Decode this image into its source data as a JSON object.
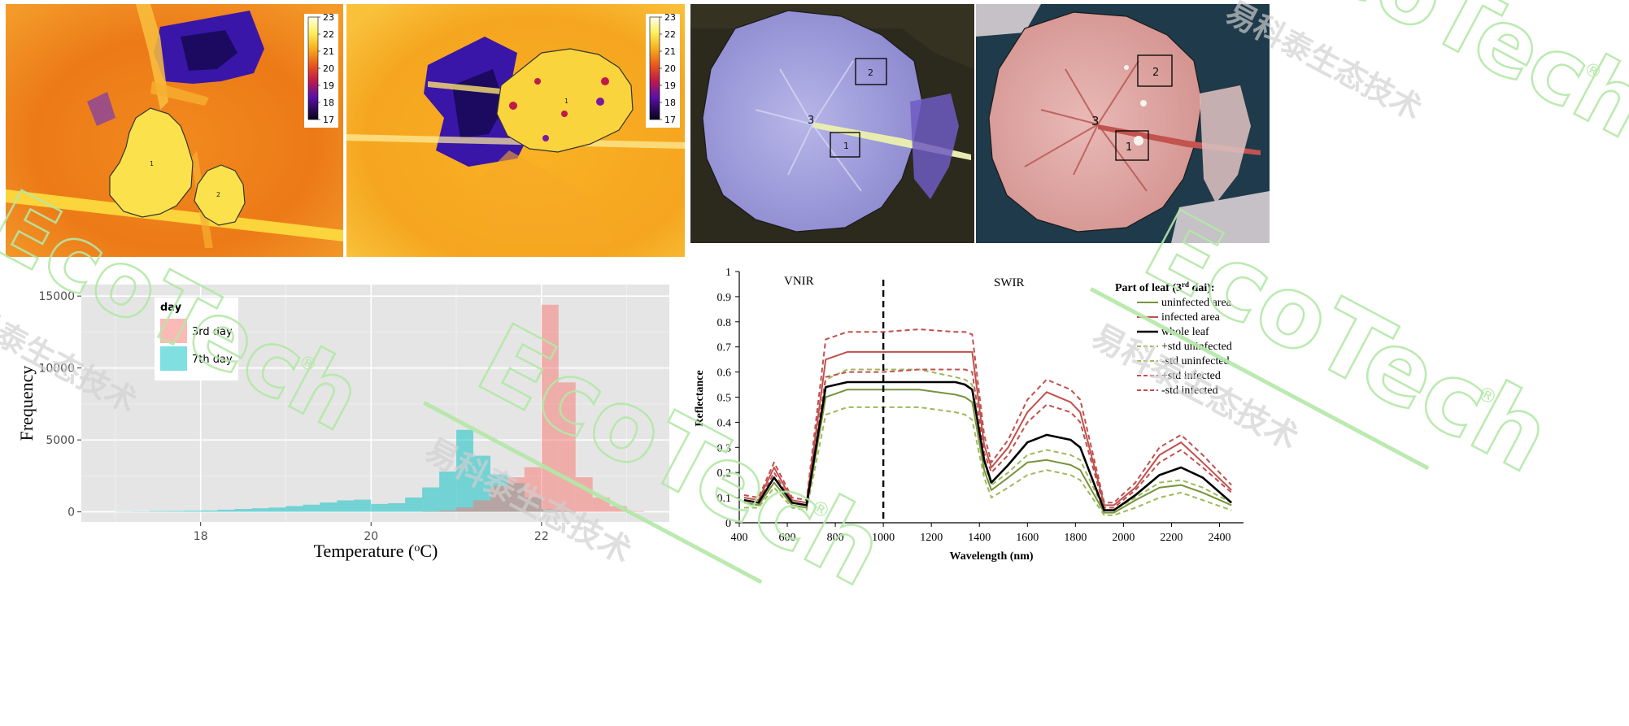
{
  "thermal_images": [
    {
      "colorbar": {
        "ticks": [
          "23",
          "22",
          "21",
          "20",
          "19",
          "18",
          "17"
        ]
      },
      "labels": [
        "1",
        "2"
      ]
    },
    {
      "colorbar": {
        "ticks": [
          "23",
          "22",
          "21",
          "20",
          "19",
          "18",
          "17"
        ]
      },
      "labels": [
        "1"
      ]
    }
  ],
  "photo_images": [
    {
      "labels": [
        "1",
        "2",
        "3"
      ]
    },
    {
      "labels": [
        "1",
        "2",
        "3"
      ]
    }
  ],
  "chart_data": [
    {
      "type": "bar",
      "subtype": "histogram",
      "xlabel": "Temperature (°C)",
      "xlabel_parts": {
        "before": "Temperature (",
        "sup": "o",
        "after": "C)"
      },
      "ylabel": "Frequency",
      "x_ticks": [
        18,
        20,
        22
      ],
      "y_ticks": [
        0,
        5000,
        10000,
        15000
      ],
      "xlim": [
        16.6,
        23.5
      ],
      "ylim": [
        -700,
        15800
      ],
      "bin_width": 0.2,
      "legend": {
        "title": "day",
        "position": "top-left"
      },
      "grid": true,
      "background": "#e5e5e5",
      "series": [
        {
          "name": "7th day",
          "color": "#00bfc4",
          "bins": [
            [
              17.0,
              20
            ],
            [
              17.2,
              30
            ],
            [
              17.4,
              50
            ],
            [
              17.6,
              60
            ],
            [
              17.8,
              80
            ],
            [
              18.0,
              100
            ],
            [
              18.2,
              150
            ],
            [
              18.4,
              200
            ],
            [
              18.6,
              250
            ],
            [
              18.8,
              300
            ],
            [
              19.0,
              400
            ],
            [
              19.2,
              500
            ],
            [
              19.4,
              650
            ],
            [
              19.6,
              800
            ],
            [
              19.8,
              850
            ],
            [
              20.0,
              550
            ],
            [
              20.2,
              600
            ],
            [
              20.4,
              1000
            ],
            [
              20.6,
              1700
            ],
            [
              20.8,
              2800
            ],
            [
              21.0,
              5700
            ],
            [
              21.2,
              3900
            ],
            [
              21.4,
              2600
            ],
            [
              21.6,
              2000
            ],
            [
              21.8,
              1000
            ],
            [
              22.0,
              200
            ],
            [
              22.2,
              50
            ]
          ]
        },
        {
          "name": "3rd day",
          "color": "#f8766d",
          "bins": [
            [
              20.6,
              30
            ],
            [
              20.8,
              100
            ],
            [
              21.0,
              300
            ],
            [
              21.2,
              800
            ],
            [
              21.4,
              1800
            ],
            [
              21.6,
              2400
            ],
            [
              21.8,
              3100
            ],
            [
              22.0,
              14400
            ],
            [
              22.2,
              9000
            ],
            [
              22.4,
              2400
            ],
            [
              22.6,
              1000
            ],
            [
              22.8,
              400
            ],
            [
              23.0,
              50
            ]
          ]
        }
      ]
    },
    {
      "type": "line",
      "xlabel": "Wavelength (nm)",
      "ylabel": "Reflectance",
      "xlim": [
        400,
        2500
      ],
      "ylim": [
        0,
        1
      ],
      "x_ticks": [
        400,
        600,
        800,
        1000,
        1200,
        1400,
        1600,
        1800,
        2000,
        2200,
        2400
      ],
      "y_ticks": [
        "0",
        "0.1",
        "0.2",
        "0.3",
        "0.4",
        "0.5",
        "0.6",
        "0.7",
        "0.8",
        "0.9",
        "1"
      ],
      "regions": {
        "left": "VNIR",
        "right": "SWIR",
        "divider_x": 1000
      },
      "legend": {
        "title_parts": {
          "before": "Part of leaf (3",
          "sup": "rd",
          "after": " dai):"
        },
        "title": "Part of leaf (3rd dai):",
        "position": "top-right"
      },
      "grid": false,
      "series": [
        {
          "name": "uninfected area",
          "color": "#77933c",
          "dash": false,
          "y": [
            0.08,
            0.07,
            0.16,
            0.07,
            0.06,
            0.5,
            0.53,
            0.53,
            0.53,
            0.51,
            0.5,
            0.48,
            0.21,
            0.13,
            0.18,
            0.24,
            0.25,
            0.23,
            0.21,
            0.04,
            0.04,
            0.09,
            0.14,
            0.15,
            0.12,
            0.07
          ]
        },
        {
          "name": "infected area",
          "color": "#c0504d",
          "dash": false,
          "y": [
            0.1,
            0.09,
            0.22,
            0.09,
            0.08,
            0.65,
            0.68,
            0.68,
            0.68,
            0.68,
            0.68,
            0.68,
            0.31,
            0.22,
            0.3,
            0.44,
            0.52,
            0.48,
            0.44,
            0.07,
            0.07,
            0.14,
            0.27,
            0.32,
            0.24,
            0.13
          ]
        },
        {
          "name": "whole leaf",
          "color": "#000000",
          "dash": false,
          "y": [
            0.09,
            0.08,
            0.18,
            0.08,
            0.07,
            0.54,
            0.56,
            0.56,
            0.56,
            0.56,
            0.55,
            0.53,
            0.25,
            0.16,
            0.23,
            0.32,
            0.35,
            0.33,
            0.3,
            0.05,
            0.05,
            0.11,
            0.19,
            0.22,
            0.18,
            0.08
          ]
        },
        {
          "name": "+std uninfected",
          "color": "#9bbb59",
          "dash": true,
          "y": [
            0.09,
            0.08,
            0.18,
            0.08,
            0.07,
            0.57,
            0.61,
            0.61,
            0.61,
            0.58,
            0.57,
            0.55,
            0.24,
            0.15,
            0.2,
            0.27,
            0.29,
            0.27,
            0.25,
            0.05,
            0.05,
            0.1,
            0.16,
            0.17,
            0.14,
            0.08
          ]
        },
        {
          "name": "-std uninfected",
          "color": "#9bbb59",
          "dash": true,
          "y": [
            0.06,
            0.06,
            0.14,
            0.06,
            0.05,
            0.43,
            0.46,
            0.46,
            0.46,
            0.44,
            0.43,
            0.41,
            0.18,
            0.1,
            0.14,
            0.19,
            0.21,
            0.19,
            0.17,
            0.03,
            0.03,
            0.06,
            0.1,
            0.12,
            0.09,
            0.05
          ]
        },
        {
          "name": "+std infected",
          "color": "#c0504d",
          "dash": true,
          "y": [
            0.11,
            0.1,
            0.24,
            0.1,
            0.09,
            0.73,
            0.76,
            0.76,
            0.77,
            0.76,
            0.76,
            0.75,
            0.35,
            0.24,
            0.33,
            0.49,
            0.57,
            0.53,
            0.49,
            0.08,
            0.08,
            0.16,
            0.3,
            0.35,
            0.27,
            0.15
          ]
        },
        {
          "name": "-std infected",
          "color": "#c0504d",
          "dash": true,
          "y": [
            0.09,
            0.08,
            0.2,
            0.08,
            0.07,
            0.58,
            0.6,
            0.6,
            0.61,
            0.61,
            0.61,
            0.6,
            0.28,
            0.2,
            0.27,
            0.4,
            0.47,
            0.44,
            0.4,
            0.06,
            0.06,
            0.13,
            0.24,
            0.29,
            0.22,
            0.12
          ]
        }
      ],
      "x": [
        420,
        480,
        545,
        620,
        680,
        760,
        850,
        1000,
        1150,
        1300,
        1340,
        1370,
        1420,
        1450,
        1520,
        1600,
        1680,
        1780,
        1820,
        1920,
        1960,
        2050,
        2150,
        2240,
        2330,
        2450
      ]
    }
  ],
  "watermark": {
    "brand": "EcoTech",
    "mark": "®",
    "cn": "易科泰生态技术"
  }
}
